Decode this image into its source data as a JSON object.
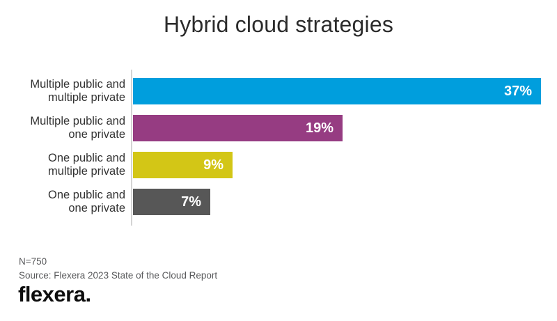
{
  "title": "Hybrid cloud strategies",
  "chart_data": {
    "type": "bar",
    "orientation": "horizontal",
    "title": "Hybrid cloud strategies",
    "categories": [
      "Multiple public and multiple private",
      "Multiple public and one private",
      "One public and multiple private",
      "One public and one private"
    ],
    "category_label_lines": [
      [
        "Multiple public and",
        "multiple private"
      ],
      [
        "Multiple public and",
        "one private"
      ],
      [
        "One public and",
        "multiple private"
      ],
      [
        "One public and",
        "one private"
      ]
    ],
    "values": [
      37,
      19,
      9,
      7
    ],
    "value_labels": [
      "37%",
      "19%",
      "9%",
      "7%"
    ],
    "bar_colors": [
      "#009EDD",
      "#963C82",
      "#D3C616",
      "#575757"
    ],
    "value_label_color": "#ffffff",
    "xlim": [
      0,
      38.5
    ],
    "xlabel": "",
    "ylabel": "",
    "grid": false,
    "legend": false,
    "axis_line_color": "#d4d4d4"
  },
  "footer": {
    "n_label": "N=750",
    "source": "Source: Flexera 2023 State of the Cloud Report",
    "logo_text": "flexera",
    "logo_dot": "."
  },
  "colors": {
    "background": "#ffffff",
    "title_text": "#2b2b2b",
    "category_text": "#333333",
    "footer_text": "#58595b",
    "logo_text": "#0d0d0d"
  }
}
